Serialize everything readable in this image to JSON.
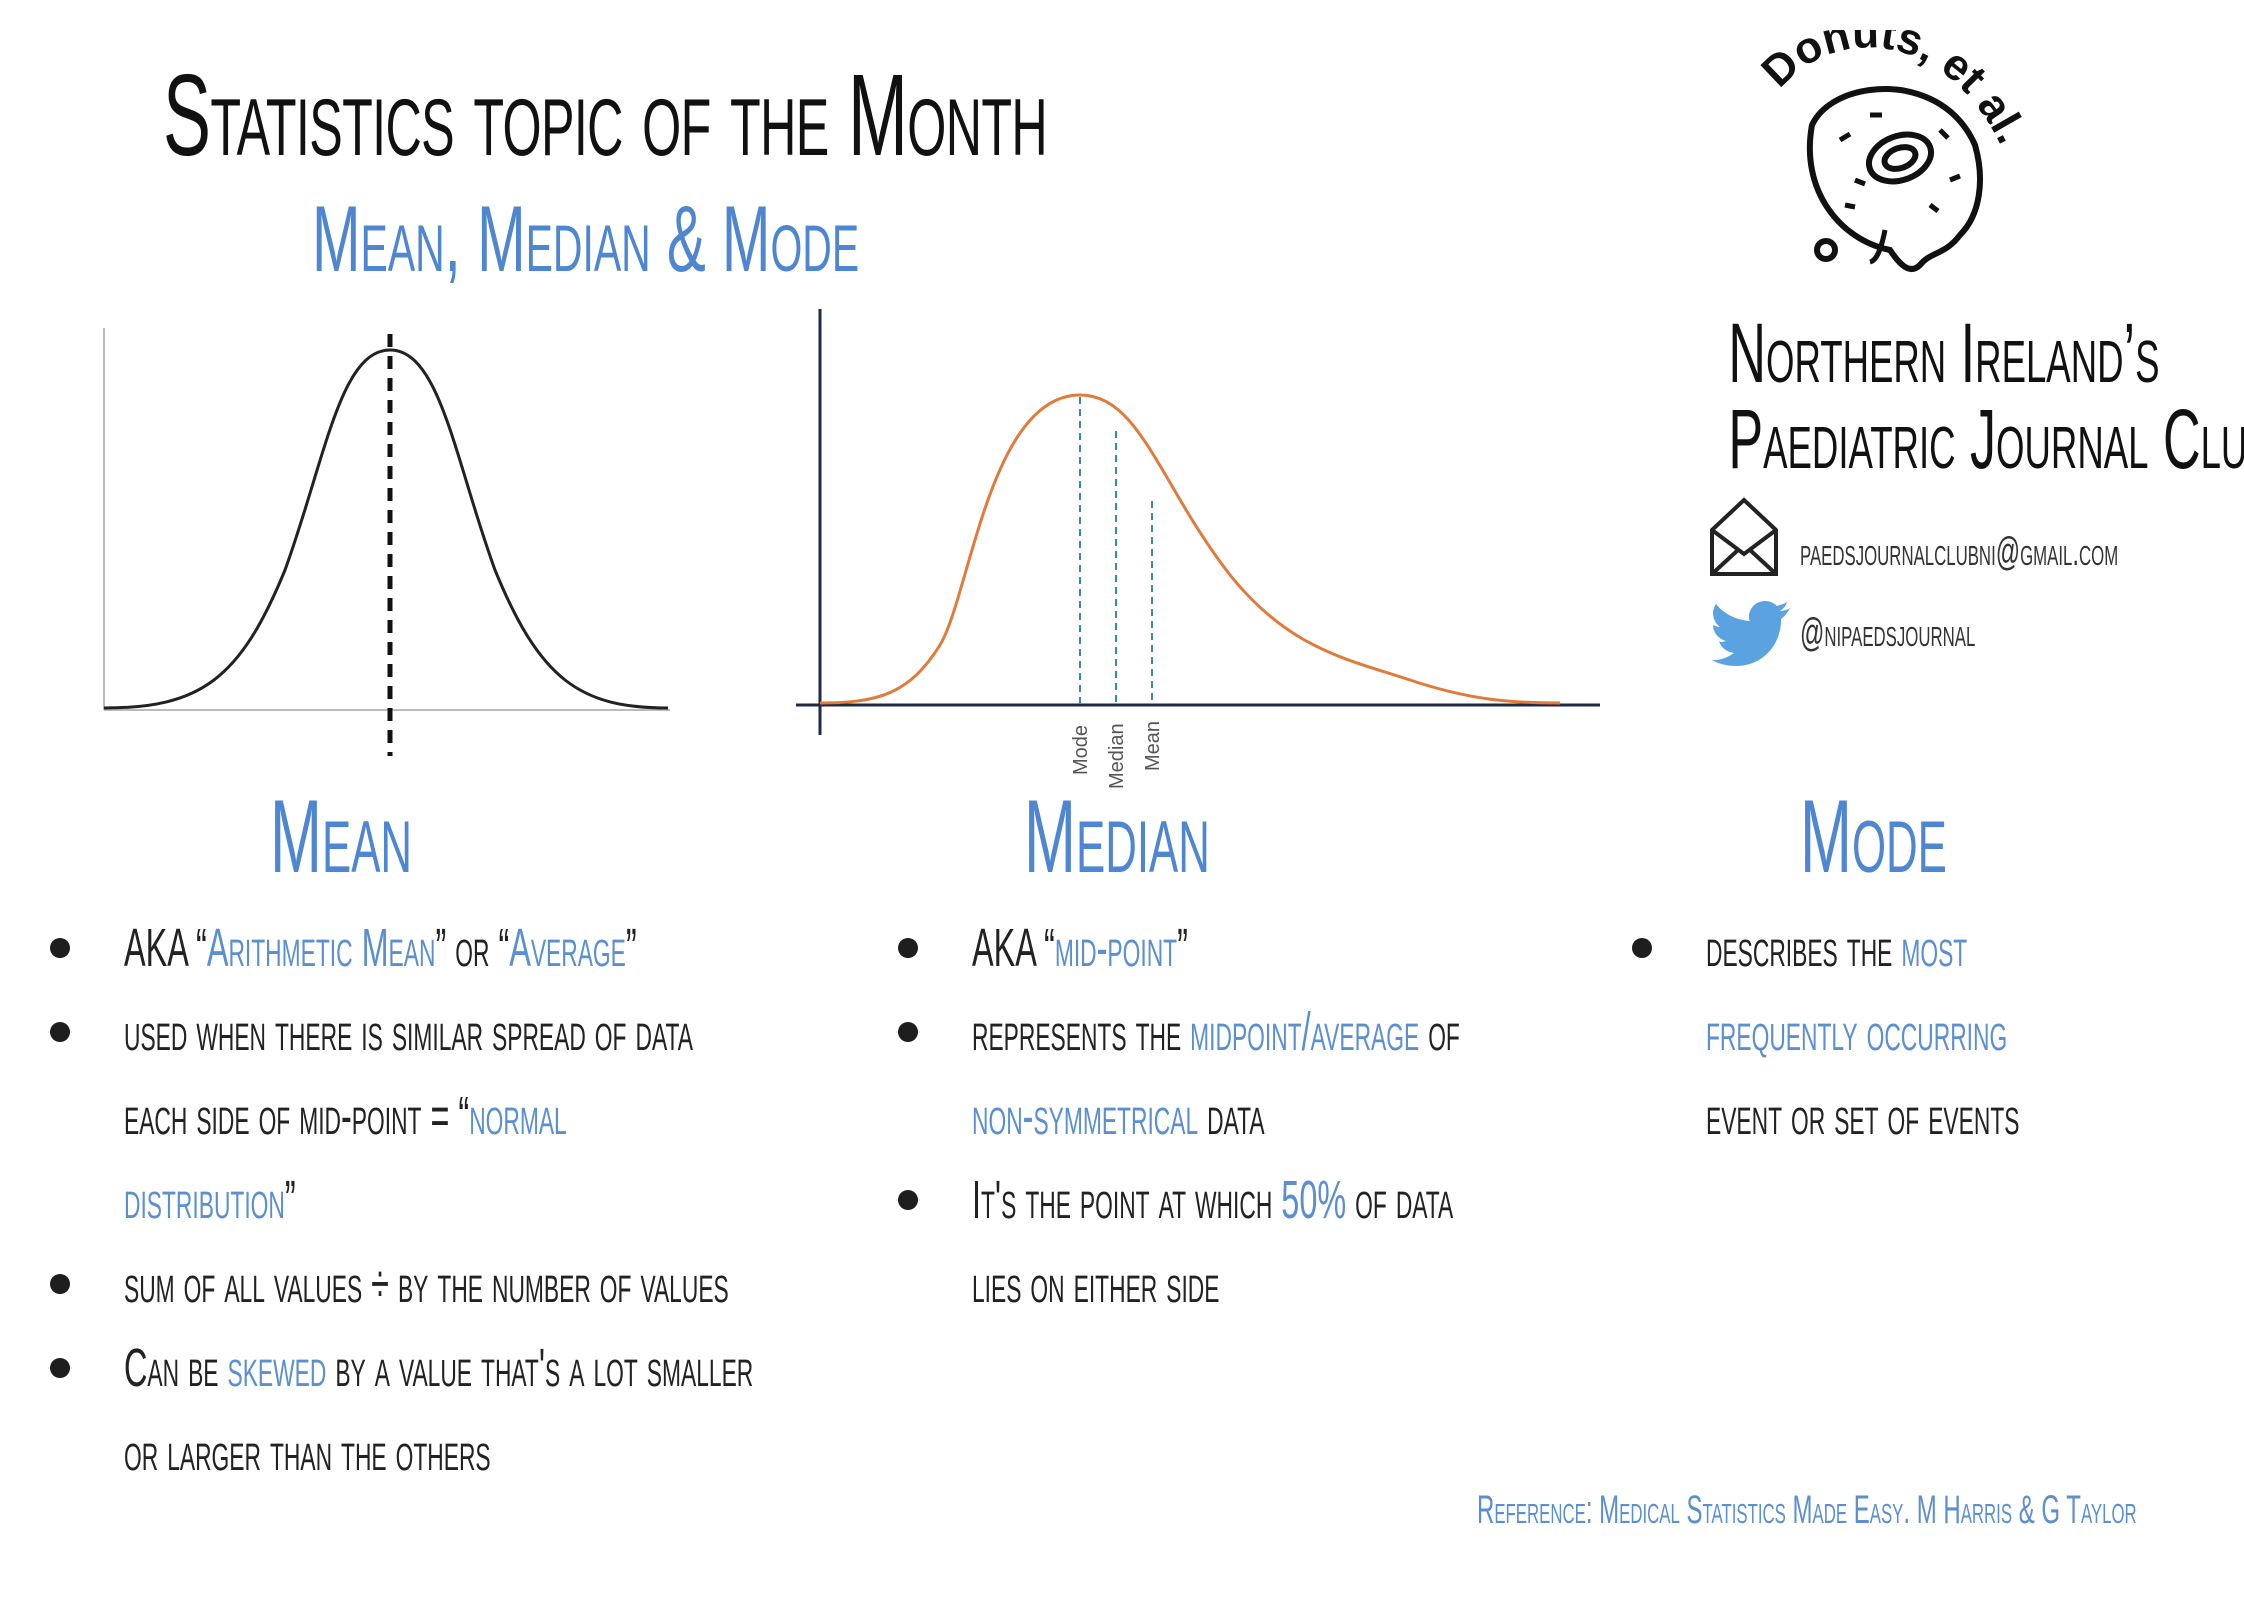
{
  "header": {
    "title": "Statistics topic of the Month",
    "subtitle": "Mean, Median & Mode"
  },
  "logo": {
    "text": "Donuts, et al.",
    "icon": "donut-icon"
  },
  "club": {
    "line1": "Northern Ireland’s",
    "line2": "Paediatric Journal Club"
  },
  "contacts": {
    "email": "paedsjournalclubni@gmail.com",
    "email_icon": "envelope-icon",
    "twitter": "@nipaedsjournal",
    "twitter_icon": "twitter-bird-icon"
  },
  "graphs": {
    "skewed_labels": [
      "Mode",
      "Median",
      "Mean"
    ]
  },
  "sections": {
    "mean": {
      "heading": "Mean",
      "b1": {
        "t1": "AKA “",
        "h1": "Arithmetic Mean",
        "t2": "” or “",
        "h2": "Average",
        "t3": "”"
      },
      "b2": {
        "l1": " used when there is similar spread of data",
        "l2a": "each side of mid-point = “",
        "l2b": "normal",
        "l3a": "distribution",
        "l3b": "”"
      },
      "b3": {
        "t": "sum of all values ÷ by the number of values"
      },
      "b4": {
        "t1": "Can be ",
        "h1": "skewed",
        "t2": " by a value that's a lot smaller",
        "l2": "or larger than the others"
      }
    },
    "median": {
      "heading": "Median",
      "b1": {
        "t1": "AKA “",
        "h1": "mid-point",
        "t2": "”"
      },
      "b2": {
        "t1": "represents the ",
        "h1": "midpoint/average",
        "t2": " of",
        "h2": "non-symmetrical",
        "t3": " data"
      },
      "b3": {
        "t1": "It's the point at which ",
        "h1": "50%",
        "t2": " of data",
        "l2": "lies on either side"
      }
    },
    "mode": {
      "heading": "Mode",
      "b1": {
        "t1": "describes the ",
        "h1": "most",
        "h2": "frequently occurring",
        "l3": "event or set of events"
      }
    }
  },
  "reference": "Reference: Medical Statistics Made Easy. M Harris & G Taylor",
  "colors": {
    "accent_blue": "#4f86d1",
    "curve_orange": "#e07b3c",
    "teal_dash": "#3a8f8a"
  }
}
